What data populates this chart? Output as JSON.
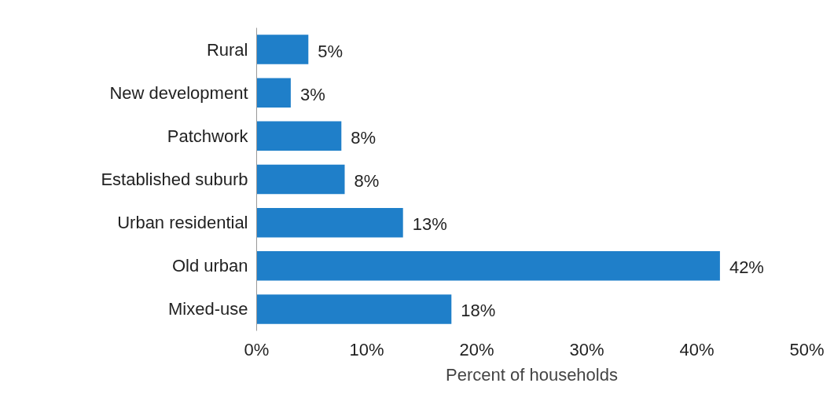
{
  "chart_data": {
    "type": "bar",
    "orientation": "horizontal",
    "xlabel": "Percent of households",
    "categories": [
      "Rural",
      "New development",
      "Patchwork",
      "Established suburb",
      "Urban residential",
      "Old urban",
      "Mixed-use"
    ],
    "values": [
      4.7,
      3.1,
      7.7,
      8.0,
      13.3,
      42.1,
      17.7
    ],
    "value_labels": [
      "5%",
      "3%",
      "8%",
      "8%",
      "13%",
      "42%",
      "18%"
    ],
    "color": "#1f7fc9",
    "xlim": [
      0,
      50
    ],
    "xticks": [
      {
        "value": 0,
        "label": "0%"
      },
      {
        "value": 10,
        "label": "10%"
      },
      {
        "value": 20,
        "label": "20%"
      },
      {
        "value": 30,
        "label": "30%"
      },
      {
        "value": 40,
        "label": "40%"
      },
      {
        "value": 50,
        "label": "50%"
      }
    ],
    "grid": false
  }
}
